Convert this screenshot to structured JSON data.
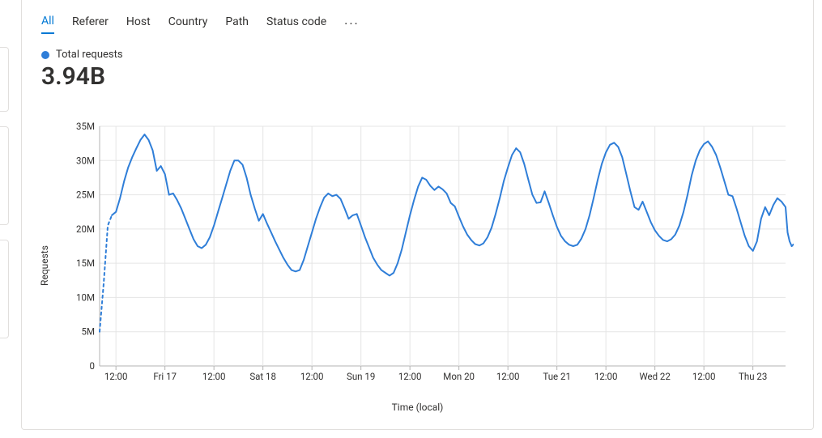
{
  "tabs": {
    "items": [
      "All",
      "Referer",
      "Host",
      "Country",
      "Path",
      "Status code"
    ],
    "active_index": 0,
    "more_glyph": "···"
  },
  "summary": {
    "legend_label": "Total requests",
    "legend_color": "#2f7ed8",
    "value": "3.94B"
  },
  "chart": {
    "type": "line",
    "background_color": "#ffffff",
    "grid_color": "#e5e5e5",
    "axis_color": "#b3b3b3",
    "text_color": "#323130",
    "font_size_ticks": 11.5,
    "font_size_labels": 12,
    "y_axis": {
      "label": "Requests",
      "min": 0,
      "max": 35000000,
      "ticks": [
        0,
        5000000,
        10000000,
        15000000,
        20000000,
        25000000,
        30000000,
        35000000
      ],
      "tick_labels": [
        "0",
        "5M",
        "10M",
        "15M",
        "20M",
        "25M",
        "30M",
        "35M"
      ]
    },
    "x_axis": {
      "label": "Time (local)",
      "min": 0,
      "max": 168,
      "ticks": [
        4,
        16,
        28,
        40,
        52,
        64,
        76,
        88,
        100,
        112,
        124,
        136,
        148,
        160
      ],
      "tick_labels": [
        "12:00",
        "Fri 17",
        "12:00",
        "Sat 18",
        "12:00",
        "Sun 19",
        "12:00",
        "Mon 20",
        "12:00",
        "Tue 21",
        "12:00",
        "Wed 22",
        "12:00",
        "Thu 23"
      ]
    },
    "series": {
      "color": "#2f7ed8",
      "line_width": 2,
      "lead_dashed_points": 3,
      "tail_dashed_points": 3,
      "points": [
        [
          0,
          5000000
        ],
        [
          1,
          12000000
        ],
        [
          2,
          20500000
        ],
        [
          3,
          22000000
        ],
        [
          4,
          22500000
        ],
        [
          5,
          24500000
        ],
        [
          6,
          27000000
        ],
        [
          7,
          29000000
        ],
        [
          8,
          30500000
        ],
        [
          9,
          31800000
        ],
        [
          10,
          33000000
        ],
        [
          11,
          33800000
        ],
        [
          12,
          33000000
        ],
        [
          13,
          31500000
        ],
        [
          14,
          28500000
        ],
        [
          15,
          29200000
        ],
        [
          16,
          28000000
        ],
        [
          17,
          25000000
        ],
        [
          18,
          25200000
        ],
        [
          19,
          24200000
        ],
        [
          20,
          23000000
        ],
        [
          21,
          21500000
        ],
        [
          22,
          20000000
        ],
        [
          23,
          18500000
        ],
        [
          24,
          17500000
        ],
        [
          25,
          17200000
        ],
        [
          26,
          17700000
        ],
        [
          27,
          18800000
        ],
        [
          28,
          20500000
        ],
        [
          29,
          22500000
        ],
        [
          30,
          24500000
        ],
        [
          31,
          26500000
        ],
        [
          32,
          28500000
        ],
        [
          33,
          30000000
        ],
        [
          34,
          30000000
        ],
        [
          35,
          29400000
        ],
        [
          36,
          27500000
        ],
        [
          37,
          25000000
        ],
        [
          38,
          23000000
        ],
        [
          39,
          21200000
        ],
        [
          40,
          22200000
        ],
        [
          41,
          20800000
        ],
        [
          42,
          19500000
        ],
        [
          43,
          18200000
        ],
        [
          44,
          17000000
        ],
        [
          45,
          15800000
        ],
        [
          46,
          14800000
        ],
        [
          47,
          14000000
        ],
        [
          48,
          13800000
        ],
        [
          49,
          14000000
        ],
        [
          50,
          15500000
        ],
        [
          51,
          17500000
        ],
        [
          52,
          19500000
        ],
        [
          53,
          21500000
        ],
        [
          54,
          23200000
        ],
        [
          55,
          24600000
        ],
        [
          56,
          25200000
        ],
        [
          57,
          24800000
        ],
        [
          58,
          25000000
        ],
        [
          59,
          24400000
        ],
        [
          60,
          23000000
        ],
        [
          61,
          21500000
        ],
        [
          62,
          22000000
        ],
        [
          63,
          22200000
        ],
        [
          64,
          20500000
        ],
        [
          65,
          18800000
        ],
        [
          66,
          17300000
        ],
        [
          67,
          15800000
        ],
        [
          68,
          14800000
        ],
        [
          69,
          14000000
        ],
        [
          70,
          13600000
        ],
        [
          71,
          13200000
        ],
        [
          72,
          13600000
        ],
        [
          73,
          15000000
        ],
        [
          74,
          17000000
        ],
        [
          75,
          19500000
        ],
        [
          76,
          22000000
        ],
        [
          77,
          24200000
        ],
        [
          78,
          26200000
        ],
        [
          79,
          27500000
        ],
        [
          80,
          27200000
        ],
        [
          81,
          26300000
        ],
        [
          82,
          25700000
        ],
        [
          83,
          26200000
        ],
        [
          84,
          25800000
        ],
        [
          85,
          25200000
        ],
        [
          86,
          23800000
        ],
        [
          87,
          23300000
        ],
        [
          88,
          21800000
        ],
        [
          89,
          20400000
        ],
        [
          90,
          19200000
        ],
        [
          91,
          18400000
        ],
        [
          92,
          17800000
        ],
        [
          93,
          17600000
        ],
        [
          94,
          17900000
        ],
        [
          95,
          18800000
        ],
        [
          96,
          20200000
        ],
        [
          97,
          22200000
        ],
        [
          98,
          24500000
        ],
        [
          99,
          27000000
        ],
        [
          100,
          29000000
        ],
        [
          101,
          30800000
        ],
        [
          102,
          31800000
        ],
        [
          103,
          31200000
        ],
        [
          104,
          29500000
        ],
        [
          105,
          27200000
        ],
        [
          106,
          25000000
        ],
        [
          107,
          23800000
        ],
        [
          108,
          23900000
        ],
        [
          109,
          25500000
        ],
        [
          110,
          23800000
        ],
        [
          111,
          22000000
        ],
        [
          112,
          20300000
        ],
        [
          113,
          19000000
        ],
        [
          114,
          18200000
        ],
        [
          115,
          17700000
        ],
        [
          116,
          17500000
        ],
        [
          117,
          17700000
        ],
        [
          118,
          18600000
        ],
        [
          119,
          20000000
        ],
        [
          120,
          22000000
        ],
        [
          121,
          24500000
        ],
        [
          122,
          27200000
        ],
        [
          123,
          29500000
        ],
        [
          124,
          31200000
        ],
        [
          125,
          32300000
        ],
        [
          126,
          32600000
        ],
        [
          127,
          32000000
        ],
        [
          128,
          30500000
        ],
        [
          129,
          28000000
        ],
        [
          130,
          25500000
        ],
        [
          131,
          23200000
        ],
        [
          132,
          22800000
        ],
        [
          133,
          24000000
        ],
        [
          134,
          22500000
        ],
        [
          135,
          21000000
        ],
        [
          136,
          19800000
        ],
        [
          137,
          19000000
        ],
        [
          138,
          18400000
        ],
        [
          139,
          18200000
        ],
        [
          140,
          18500000
        ],
        [
          141,
          19200000
        ],
        [
          142,
          20500000
        ],
        [
          143,
          22500000
        ],
        [
          144,
          25000000
        ],
        [
          145,
          27800000
        ],
        [
          146,
          30000000
        ],
        [
          147,
          31500000
        ],
        [
          148,
          32400000
        ],
        [
          149,
          32800000
        ],
        [
          150,
          32000000
        ],
        [
          151,
          30800000
        ],
        [
          152,
          29000000
        ],
        [
          153,
          27000000
        ],
        [
          154,
          25000000
        ],
        [
          155,
          24800000
        ],
        [
          156,
          23000000
        ],
        [
          157,
          21000000
        ],
        [
          158,
          19000000
        ],
        [
          159,
          17500000
        ],
        [
          160,
          16800000
        ],
        [
          161,
          18200000
        ],
        [
          162,
          21500000
        ],
        [
          163,
          23200000
        ],
        [
          164,
          22000000
        ],
        [
          165,
          23500000
        ],
        [
          166,
          24500000
        ],
        [
          167,
          24000000
        ],
        [
          168,
          23200000
        ],
        [
          168.5,
          19500000
        ],
        [
          169,
          18200000
        ],
        [
          169.5,
          17500000
        ],
        [
          170,
          17800000
        ],
        [
          170.5,
          16500000
        ],
        [
          171,
          14000000
        ]
      ]
    }
  }
}
